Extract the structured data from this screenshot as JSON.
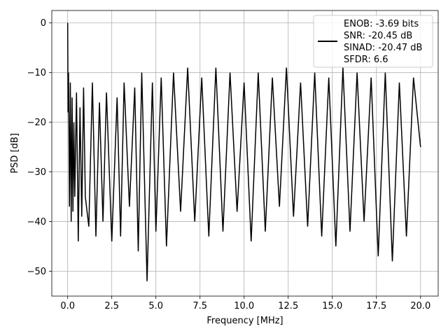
{
  "chart_data": {
    "type": "line",
    "xlabel": "Frequency [MHz]",
    "ylabel": "PSD [dB]",
    "xlim": [
      -0.9,
      21.0
    ],
    "ylim": [
      -55,
      2.5
    ],
    "grid": true,
    "xticks": [
      0.0,
      2.5,
      5.0,
      7.5,
      10.0,
      12.5,
      15.0,
      17.5,
      20.0
    ],
    "xtick_labels": [
      "0.0",
      "2.5",
      "5.0",
      "7.5",
      "10.0",
      "12.5",
      "15.0",
      "17.5",
      "20.0"
    ],
    "yticks": [
      0,
      -10,
      -20,
      -30,
      -40,
      -50
    ],
    "ytick_labels": [
      "0",
      "−10",
      "−20",
      "−30",
      "−40",
      "−50"
    ],
    "legend_position": "top-right",
    "series": [
      {
        "color": "#000000",
        "legend_lines": [
          "ENOB: -3.69 bits",
          "SNR: -20.45 dB",
          "SINAD: -20.47 dB",
          "SFDR: 6.6"
        ],
        "x": [
          0.0,
          0.02,
          0.05,
          0.1,
          0.15,
          0.2,
          0.25,
          0.3,
          0.35,
          0.4,
          0.5,
          0.6,
          0.7,
          0.8,
          0.9,
          1.0,
          1.2,
          1.4,
          1.6,
          1.8,
          2.0,
          2.2,
          2.5,
          2.8,
          3.0,
          3.2,
          3.5,
          3.8,
          4.0,
          4.2,
          4.5,
          4.8,
          5.0,
          5.3,
          5.6,
          6.0,
          6.4,
          6.8,
          7.2,
          7.6,
          8.0,
          8.4,
          8.8,
          9.2,
          9.6,
          10.0,
          10.4,
          10.8,
          11.2,
          11.6,
          12.0,
          12.4,
          12.8,
          13.2,
          13.6,
          14.0,
          14.4,
          14.8,
          15.2,
          15.6,
          16.0,
          16.4,
          16.8,
          17.2,
          17.6,
          18.0,
          18.4,
          18.8,
          19.2,
          19.6,
          20.0
        ],
        "y": [
          0.0,
          -18,
          -10,
          -37,
          -12,
          -40,
          -15,
          -38,
          -20,
          -35,
          -14,
          -44,
          -17,
          -39,
          -13,
          -35,
          -41,
          -12,
          -43,
          -16,
          -40,
          -14,
          -44,
          -15,
          -43,
          -12,
          -37,
          -13,
          -46,
          -10,
          -52,
          -12,
          -42,
          -11,
          -45,
          -10,
          -38,
          -9,
          -40,
          -11,
          -43,
          -9,
          -42,
          -10,
          -38,
          -12,
          -44,
          -10,
          -42,
          -11,
          -37,
          -9,
          -39,
          -12,
          -41,
          -10,
          -43,
          -11,
          -45,
          -9,
          -42,
          -10,
          -40,
          -11,
          -47,
          -10,
          -48,
          -12,
          -43,
          -11,
          -25
        ]
      }
    ]
  }
}
